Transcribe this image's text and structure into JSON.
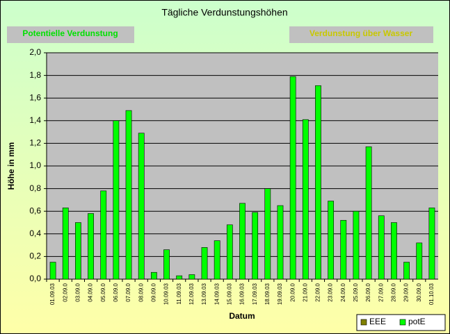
{
  "chart_data": {
    "type": "bar",
    "title": "Tägliche Verdunstungshöhen",
    "annotations": [
      {
        "text": "Potentielle Verdunstung",
        "color": "#00e000"
      },
      {
        "text": "Verdunstung über Wasser",
        "color": "#c8c800"
      }
    ],
    "x_label": "Datum",
    "y_label": "Höhe in mm",
    "categories": [
      "01.09.03",
      "02.09.0",
      "03.09.0",
      "04.09.0",
      "05.09.0",
      "06.09.0",
      "07.09.0",
      "08.09.0",
      "09.09.0",
      "10.09.03",
      "11.09.03",
      "12.09.03",
      "13.09.03",
      "14.09.03",
      "15.09.03",
      "16.09.03",
      "17.09.03",
      "18.09.03",
      "19.09.03",
      "20.09.0",
      "21.09.0",
      "22.09.0",
      "23.09.0",
      "24.09.0",
      "25.09.0",
      "26.09.0",
      "27.09.0",
      "28.09.0",
      "29.09.0",
      "30.09.0",
      "01.10.03"
    ],
    "series": [
      {
        "name": "EEE",
        "color": "#808000",
        "values": [
          null,
          null,
          null,
          null,
          null,
          null,
          null,
          null,
          null,
          null,
          null,
          null,
          null,
          null,
          null,
          null,
          null,
          null,
          null,
          null,
          null,
          null,
          null,
          null,
          null,
          null,
          null,
          null,
          null,
          null,
          null
        ]
      },
      {
        "name": "potE",
        "color": "#00ff00",
        "values": [
          0.15,
          0.63,
          0.5,
          0.58,
          0.78,
          1.4,
          1.49,
          1.29,
          0.06,
          0.26,
          0.03,
          0.04,
          0.28,
          0.34,
          0.48,
          0.67,
          0.59,
          0.8,
          0.65,
          1.79,
          1.41,
          1.71,
          0.69,
          0.52,
          0.6,
          1.17,
          0.56,
          0.5,
          0.15,
          0.32,
          0.63
        ]
      }
    ],
    "ylim": [
      0,
      2
    ],
    "yticks": [
      {
        "value": 0,
        "label": "0,0"
      },
      {
        "value": 0.2,
        "label": "0,2"
      },
      {
        "value": 0.4,
        "label": "0,4"
      },
      {
        "value": 0.6,
        "label": "0,6"
      },
      {
        "value": 0.8,
        "label": "0,8"
      },
      {
        "value": 1,
        "label": "1,0"
      },
      {
        "value": 1.2,
        "label": "1,2"
      },
      {
        "value": 1.4,
        "label": "1,4"
      },
      {
        "value": 1.6,
        "label": "1,6"
      },
      {
        "value": 1.8,
        "label": "1,8"
      },
      {
        "value": 2,
        "label": "2,0"
      }
    ],
    "grid": true,
    "legend": "bottom-right"
  }
}
